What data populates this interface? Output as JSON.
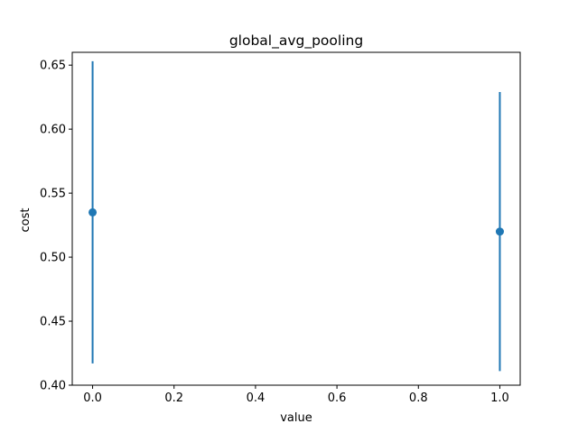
{
  "chart_data": {
    "type": "scatter",
    "title": "global_avg_pooling",
    "xlabel": "value",
    "ylabel": "cost",
    "xlim": [
      -0.05,
      1.05
    ],
    "ylim": [
      0.4,
      0.66
    ],
    "xticks": [
      0.0,
      0.2,
      0.4,
      0.6,
      0.8,
      1.0
    ],
    "xtick_labels": [
      "0.0",
      "0.2",
      "0.4",
      "0.6",
      "0.8",
      "1.0"
    ],
    "yticks": [
      0.4,
      0.45,
      0.5,
      0.55,
      0.6,
      0.65
    ],
    "ytick_labels": [
      "0.40",
      "0.45",
      "0.50",
      "0.55",
      "0.60",
      "0.65"
    ],
    "series": [
      {
        "name": "cost",
        "color": "#1f77b4",
        "points": [
          {
            "x": 0.0,
            "y": 0.535,
            "err_low": 0.417,
            "err_high": 0.653
          },
          {
            "x": 1.0,
            "y": 0.52,
            "err_low": 0.411,
            "err_high": 0.629
          }
        ]
      }
    ],
    "grid": false,
    "legend": "none"
  }
}
